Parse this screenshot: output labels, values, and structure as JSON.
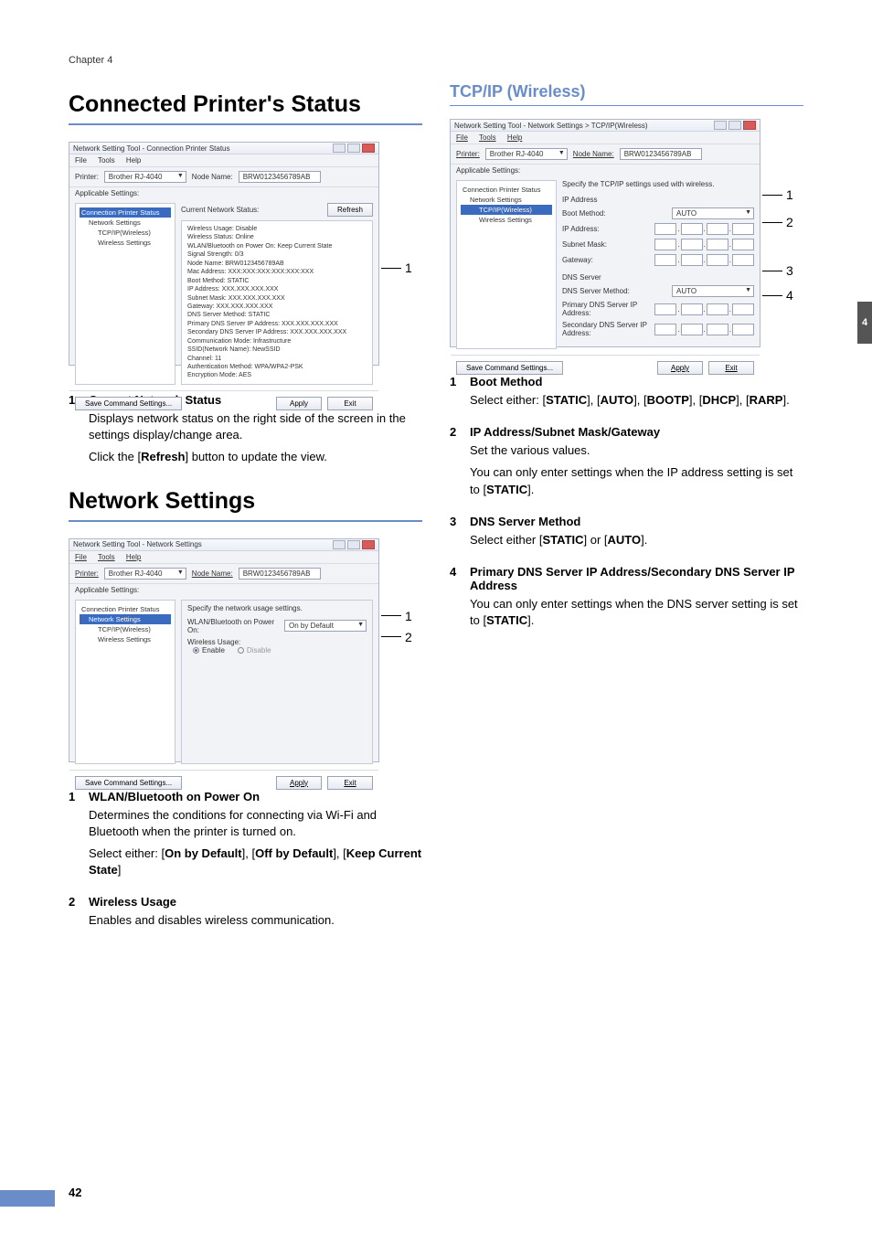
{
  "chapter_label": "Chapter 4",
  "page_number": "42",
  "side_tab": "4",
  "h1_connected": "Connected Printer's Status",
  "h1_network": "Network Settings",
  "h3_tcpip": "TCP/IP (Wireless)",
  "win_connected": {
    "title": "Network Setting Tool - Connection Printer Status",
    "menu_file": "File",
    "menu_tools": "Tools",
    "menu_help": "Help",
    "printer_label": "Printer:",
    "printer_value": "Brother RJ-4040",
    "node_label": "Node Name:",
    "node_value": "BRW0123456789AB",
    "applicable": "Applicable Settings:",
    "tree": {
      "root": "Connection Printer Status",
      "n1": "Network Settings",
      "n2": "TCP/IP(Wireless)",
      "n3": "Wireless Settings"
    },
    "status_title": "Current Network Status:",
    "refresh": "Refresh",
    "status_lines": [
      "Wireless Usage: Disable",
      "Wireless Status: Online",
      "WLAN/Bluetooth on Power On: Keep Current State",
      "Signal Strength: 0/3",
      "Node Name: BRW0123456789AB",
      "Mac Address: XXX:XXX:XXX:XXX:XXX:XXX",
      "Boot Method: STATIC",
      "IP Address: XXX.XXX.XXX.XXX",
      "Subnet Mask: XXX.XXX.XXX.XXX",
      "Gateway: XXX.XXX.XXX.XXX",
      "DNS Server Method: STATIC",
      "Primary DNS Server IP Address: XXX.XXX.XXX.XXX",
      "Secondary DNS Server IP Address: XXX.XXX.XXX.XXX",
      "Communication Mode: Infrastructure",
      "SSID(Network Name): NewSSID",
      "Channel: 11",
      "Authentication Method: WPA/WPA2-PSK",
      "Encryption Mode: AES"
    ],
    "save_cmd": "Save Command Settings...",
    "apply": "Apply",
    "exit": "Exit"
  },
  "win_network": {
    "title": "Network Setting Tool - Network Settings",
    "form_title": "Specify the network usage settings.",
    "wlan_label": "WLAN/Bluetooth on Power On:",
    "wlan_value": "On by Default",
    "usage_label": "Wireless Usage:",
    "enable": "Enable",
    "disable": "Disable"
  },
  "win_tcpip": {
    "title": "Network Setting Tool - Network Settings > TCP/IP(Wireless)",
    "form_title": "Specify the TCP/IP settings used with wireless.",
    "ip_group": "IP Address",
    "boot_method": "Boot Method:",
    "boot_value": "AUTO",
    "ip_address": "IP Address:",
    "subnet": "Subnet Mask:",
    "gateway": "Gateway:",
    "dns_group": "DNS Server",
    "dns_method": "DNS Server Method:",
    "dns_value": "AUTO",
    "primary_dns": "Primary DNS Server IP Address:",
    "secondary_dns": "Secondary DNS Server IP Address:"
  },
  "desc_connected": {
    "n1": "1",
    "t1": "Current Network Status",
    "p1a": "Displays network status on the right side of the screen in the settings display/change area.",
    "p1b_pre": "Click the [",
    "p1b_bold": "Refresh",
    "p1b_post": "] button to update the view."
  },
  "desc_network": {
    "n1": "1",
    "t1": "WLAN/Bluetooth on Power On",
    "p1a": "Determines the conditions for connecting via Wi-Fi and Bluetooth when the printer is turned on.",
    "p1b_pre": "Select either: [",
    "p1b_b1": "On by Default",
    "p1b_mid1": "], [",
    "p1b_b2": "Off by Default",
    "p1b_mid2": "], [",
    "p1b_b3": "Keep Current State",
    "p1b_post": "]",
    "n2": "2",
    "t2": "Wireless Usage",
    "p2": "Enables and disables wireless communication."
  },
  "desc_tcpip": {
    "n1": "1",
    "t1": "Boot Method",
    "p1_pre": "Select either: [",
    "p1_b1": "STATIC",
    "p1_m1": "], [",
    "p1_b2": "AUTO",
    "p1_m2": "], [",
    "p1_b3": "BOOTP",
    "p1_m3": "], [",
    "p1_b4": "DHCP",
    "p1_m4": "], [",
    "p1_b5": "RARP",
    "p1_post": "].",
    "n2": "2",
    "t2": "IP Address/Subnet Mask/Gateway",
    "p2a": "Set the various values.",
    "p2b_pre": "You can only enter settings when the IP address setting is set to [",
    "p2b_b": "STATIC",
    "p2b_post": "].",
    "n3": "3",
    "t3": "DNS Server Method",
    "p3_pre": "Select either [",
    "p3_b1": "STATIC",
    "p3_m": "] or [",
    "p3_b2": "AUTO",
    "p3_post": "].",
    "n4": "4",
    "t4": "Primary DNS Server IP Address/Secondary DNS Server IP Address",
    "p4_pre": "You can only enter settings when the DNS server setting is set to [",
    "p4_b": "STATIC",
    "p4_post": "]."
  }
}
